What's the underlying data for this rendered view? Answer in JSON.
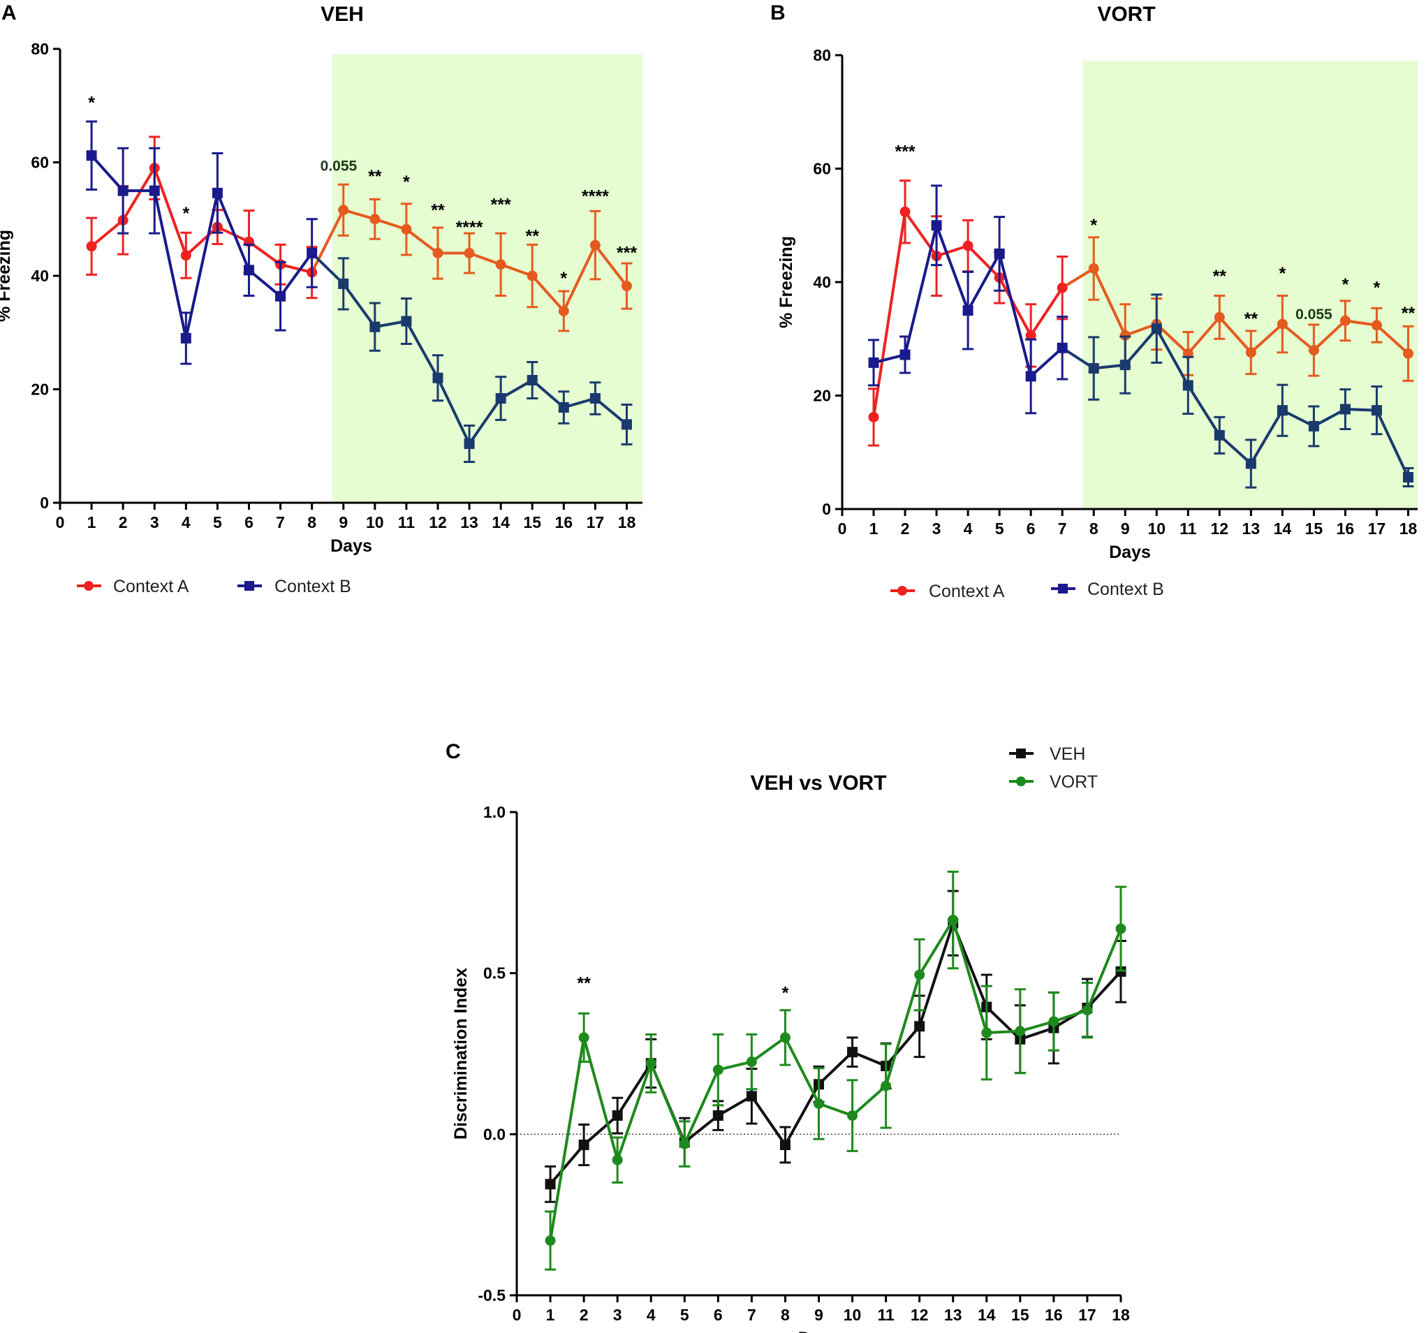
{
  "figure": {
    "panel_letters": [
      "A",
      "B",
      "C"
    ]
  },
  "chart_data": [
    {
      "id": "A",
      "type": "line",
      "title": "VEH",
      "xlabel": "Days",
      "ylabel": "% Freezing",
      "xlim": [
        0,
        18.5
      ],
      "ylim": [
        0,
        80
      ],
      "xticks": [
        0,
        1,
        2,
        3,
        4,
        5,
        6,
        7,
        8,
        9,
        10,
        11,
        12,
        13,
        14,
        15,
        16,
        17,
        18
      ],
      "yticks": [
        0,
        20,
        40,
        60,
        80
      ],
      "shaded_region": {
        "x_from": 8.65,
        "x_to": 18.5,
        "y_from": 0,
        "y_to": 79,
        "color": "#e5fdd0"
      },
      "series": [
        {
          "name": "Context A",
          "marker": "circle",
          "colors": {
            "early": "#ee2222",
            "late": "#e55b1f"
          },
          "late_from_day": 9,
          "x": [
            1,
            2,
            3,
            4,
            5,
            6,
            7,
            8,
            9,
            10,
            11,
            12,
            13,
            14,
            15,
            16,
            17,
            18
          ],
          "y": [
            45.2,
            49.8,
            59.0,
            43.6,
            48.6,
            46.0,
            42.0,
            40.6,
            51.6,
            50.0,
            48.2,
            44.0,
            44.0,
            42.0,
            40.0,
            33.8,
            45.4,
            38.2
          ],
          "err": [
            5,
            6,
            5.5,
            4,
            3,
            5.5,
            3.5,
            4.5,
            4.5,
            3.5,
            4.5,
            4.5,
            3.5,
            5.5,
            5.5,
            3.5,
            6,
            4
          ]
        },
        {
          "name": "Context B",
          "marker": "square",
          "colors": {
            "early": "#1a1a8c",
            "late": "#1a3a6e"
          },
          "late_from_day": 9,
          "x": [
            1,
            2,
            3,
            4,
            5,
            6,
            7,
            8,
            9,
            10,
            11,
            12,
            13,
            14,
            15,
            16,
            17,
            18
          ],
          "y": [
            61.2,
            55.0,
            55.0,
            29.0,
            54.6,
            41.0,
            36.4,
            44.0,
            38.6,
            31.0,
            32.0,
            22.0,
            10.4,
            18.4,
            21.6,
            16.8,
            18.4,
            13.8
          ],
          "err": [
            6,
            7.5,
            7.5,
            4.5,
            7,
            4.5,
            6,
            6,
            4.5,
            4.2,
            4,
            4,
            3.2,
            3.8,
            3.2,
            2.8,
            2.8,
            3.5
          ]
        }
      ],
      "annotations": [
        {
          "x": 1,
          "y": 69.5,
          "text": "*",
          "color": "#000000"
        },
        {
          "x": 4,
          "y": 50.0,
          "text": "*",
          "color": "#000000"
        },
        {
          "x": 8.85,
          "y": 58.5,
          "text": "0.055",
          "color": "#1a3a1a"
        },
        {
          "x": 10,
          "y": 56.5,
          "text": "**",
          "color": "#000000"
        },
        {
          "x": 11,
          "y": 55.5,
          "text": "*",
          "color": "#000000"
        },
        {
          "x": 12,
          "y": 50.5,
          "text": "**",
          "color": "#000000"
        },
        {
          "x": 13,
          "y": 47.5,
          "text": "****",
          "color": "#000000"
        },
        {
          "x": 14,
          "y": 51.5,
          "text": "***",
          "color": "#000000"
        },
        {
          "x": 15,
          "y": 46.0,
          "text": "**",
          "color": "#000000"
        },
        {
          "x": 16,
          "y": 38.5,
          "text": "*",
          "color": "#000000"
        },
        {
          "x": 17,
          "y": 53.0,
          "text": "****",
          "color": "#000000"
        },
        {
          "x": 18,
          "y": 43.0,
          "text": "***",
          "color": "#000000"
        }
      ]
    },
    {
      "id": "B",
      "type": "line",
      "title": "VORT",
      "xlabel": "Days",
      "ylabel": "% Freezing",
      "xlim": [
        0,
        18.3
      ],
      "ylim": [
        0,
        80
      ],
      "xticks": [
        0,
        1,
        2,
        3,
        4,
        5,
        6,
        7,
        8,
        9,
        10,
        11,
        12,
        13,
        14,
        15,
        16,
        17,
        18
      ],
      "yticks": [
        0,
        20,
        40,
        60,
        80
      ],
      "shaded_region": {
        "x_from": 7.65,
        "x_to": 18.3,
        "y_from": 0,
        "y_to": 79,
        "color": "#e5fdd0"
      },
      "series": [
        {
          "name": "Context A",
          "marker": "circle",
          "colors": {
            "early": "#ee2222",
            "late": "#e55b1f"
          },
          "late_from_day": 8,
          "x": [
            1,
            2,
            3,
            4,
            5,
            6,
            7,
            8,
            9,
            10,
            11,
            12,
            13,
            14,
            15,
            16,
            17,
            18
          ],
          "y": [
            16.2,
            52.4,
            44.6,
            46.4,
            40.8,
            30.6,
            39.0,
            42.4,
            30.6,
            32.6,
            27.4,
            33.8,
            27.6,
            32.6,
            28.0,
            33.2,
            32.4,
            27.4
          ],
          "err": [
            5,
            5.5,
            7,
            4.5,
            4.5,
            5.5,
            5.5,
            5.5,
            5.5,
            4.5,
            3.8,
            3.8,
            3.8,
            5,
            4.5,
            3.5,
            3,
            4.8
          ]
        },
        {
          "name": "Context B",
          "marker": "square",
          "colors": {
            "early": "#1a1a8c",
            "late": "#1a3a6e"
          },
          "late_from_day": 8,
          "x": [
            1,
            2,
            3,
            4,
            5,
            6,
            7,
            8,
            9,
            10,
            11,
            12,
            13,
            14,
            15,
            16,
            17,
            18
          ],
          "y": [
            25.8,
            27.2,
            50.0,
            35.0,
            45.0,
            23.4,
            28.4,
            24.8,
            25.4,
            31.8,
            21.8,
            13.0,
            8.0,
            17.4,
            14.6,
            17.6,
            17.4,
            5.6
          ],
          "err": [
            4,
            3.2,
            7,
            6.8,
            6.5,
            6.5,
            5.5,
            5.5,
            5,
            6,
            5,
            3.2,
            4.2,
            4.5,
            3.5,
            3.5,
            4.2,
            1.6
          ]
        }
      ],
      "annotations": [
        {
          "x": 2,
          "y": 62.0,
          "text": "***",
          "color": "#000000"
        },
        {
          "x": 8,
          "y": 49.0,
          "text": "*",
          "color": "#000000"
        },
        {
          "x": 12,
          "y": 40.0,
          "text": "**",
          "color": "#000000"
        },
        {
          "x": 13,
          "y": 32.5,
          "text": "**",
          "color": "#000000"
        },
        {
          "x": 14,
          "y": 40.5,
          "text": "*",
          "color": "#000000"
        },
        {
          "x": 15,
          "y": 33.5,
          "text": "0.055",
          "color": "#1a3a1a"
        },
        {
          "x": 16,
          "y": 38.5,
          "text": "*",
          "color": "#000000"
        },
        {
          "x": 17,
          "y": 38.0,
          "text": "*",
          "color": "#000000"
        },
        {
          "x": 18,
          "y": 33.5,
          "text": "**",
          "color": "#000000"
        }
      ]
    },
    {
      "id": "C",
      "type": "line",
      "title": "VEH vs VORT",
      "xlabel": "Days",
      "ylabel": "Discrimination Index",
      "xlim": [
        0,
        18
      ],
      "ylim": [
        -0.5,
        1.0
      ],
      "xticks": [
        0,
        1,
        2,
        3,
        4,
        5,
        6,
        7,
        8,
        9,
        10,
        11,
        12,
        13,
        14,
        15,
        16,
        17,
        18
      ],
      "yticks": [
        -0.5,
        0.0,
        0.5,
        1.0
      ],
      "ytick_labels": [
        "-0.5",
        "0.0",
        "0.5",
        "1.0"
      ],
      "reference_line_y": 0.0,
      "series": [
        {
          "name": "VEH",
          "marker": "square",
          "color": "#111111",
          "x": [
            1,
            2,
            3,
            4,
            5,
            6,
            7,
            8,
            9,
            10,
            11,
            12,
            13,
            14,
            15,
            16,
            17,
            18
          ],
          "y": [
            -0.155,
            -0.033,
            0.058,
            0.22,
            -0.025,
            0.058,
            0.118,
            -0.033,
            0.155,
            0.255,
            0.212,
            0.335,
            0.655,
            0.395,
            0.295,
            0.33,
            0.392,
            0.505
          ],
          "err": [
            0.055,
            0.063,
            0.055,
            0.075,
            0.075,
            0.045,
            0.085,
            0.055,
            0.055,
            0.045,
            0.07,
            0.095,
            0.1,
            0.1,
            0.105,
            0.11,
            0.09,
            0.095
          ]
        },
        {
          "name": "VORT",
          "marker": "circle",
          "color": "#1e8a1e",
          "x": [
            1,
            2,
            3,
            4,
            5,
            6,
            7,
            8,
            9,
            10,
            11,
            12,
            13,
            14,
            15,
            16,
            17,
            18
          ],
          "y": [
            -0.33,
            0.3,
            -0.08,
            0.22,
            -0.03,
            0.2,
            0.225,
            0.3,
            0.095,
            0.058,
            0.15,
            0.495,
            0.665,
            0.315,
            0.32,
            0.35,
            0.385,
            0.638
          ],
          "err": [
            0.09,
            0.075,
            0.07,
            0.09,
            0.07,
            0.11,
            0.085,
            0.085,
            0.11,
            0.11,
            0.13,
            0.11,
            0.15,
            0.145,
            0.13,
            0.09,
            0.085,
            0.13
          ]
        }
      ],
      "annotations": [
        {
          "x": 2,
          "y": 0.45,
          "text": "**",
          "color": "#000000"
        },
        {
          "x": 8,
          "y": 0.42,
          "text": "*",
          "color": "#000000"
        }
      ]
    }
  ]
}
